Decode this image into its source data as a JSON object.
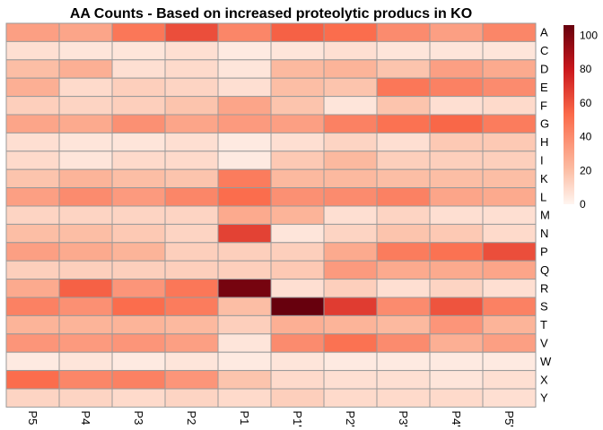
{
  "chart_data": {
    "type": "heatmap",
    "title": "AA Counts - Based on increased proteolytic producs in KO",
    "columns": [
      "P5",
      "P4",
      "P3",
      "P2",
      "P1",
      "P1'",
      "P2'",
      "P3'",
      "P4'",
      "P5'"
    ],
    "rows": [
      "A",
      "C",
      "D",
      "E",
      "F",
      "G",
      "H",
      "I",
      "K",
      "L",
      "M",
      "N",
      "P",
      "Q",
      "R",
      "S",
      "T",
      "V",
      "W",
      "X",
      "Y"
    ],
    "values": [
      [
        32,
        30,
        48,
        62,
        42,
        56,
        52,
        40,
        32,
        42
      ],
      [
        8,
        6,
        6,
        8,
        4,
        6,
        8,
        6,
        6,
        6
      ],
      [
        20,
        26,
        8,
        10,
        6,
        22,
        24,
        18,
        32,
        28
      ],
      [
        26,
        10,
        14,
        12,
        8,
        20,
        18,
        48,
        44,
        40
      ],
      [
        14,
        12,
        14,
        18,
        30,
        18,
        6,
        18,
        8,
        10
      ],
      [
        30,
        28,
        38,
        30,
        34,
        32,
        44,
        50,
        54,
        46
      ],
      [
        8,
        6,
        6,
        8,
        4,
        8,
        12,
        8,
        16,
        16
      ],
      [
        10,
        6,
        10,
        10,
        4,
        16,
        22,
        14,
        14,
        14
      ],
      [
        18,
        24,
        20,
        18,
        46,
        22,
        22,
        20,
        20,
        20
      ],
      [
        32,
        40,
        34,
        42,
        52,
        38,
        40,
        44,
        30,
        28
      ],
      [
        12,
        12,
        12,
        12,
        28,
        24,
        8,
        12,
        8,
        8
      ],
      [
        20,
        20,
        16,
        12,
        66,
        6,
        12,
        18,
        16,
        10
      ],
      [
        32,
        28,
        24,
        14,
        14,
        14,
        28,
        46,
        50,
        62
      ],
      [
        14,
        14,
        14,
        14,
        14,
        16,
        34,
        28,
        28,
        30
      ],
      [
        28,
        56,
        36,
        48,
        102,
        8,
        14,
        8,
        12,
        8
      ],
      [
        44,
        38,
        52,
        46,
        20,
        110,
        68,
        40,
        60,
        44
      ],
      [
        24,
        24,
        24,
        22,
        14,
        26,
        24,
        22,
        36,
        24
      ],
      [
        36,
        34,
        36,
        32,
        6,
        40,
        50,
        40,
        26,
        32
      ],
      [
        4,
        6,
        4,
        6,
        4,
        6,
        4,
        4,
        4,
        4
      ],
      [
        52,
        42,
        44,
        36,
        18,
        10,
        8,
        8,
        6,
        8
      ],
      [
        12,
        12,
        10,
        12,
        10,
        14,
        10,
        10,
        10,
        8
      ]
    ],
    "colorbar": {
      "min": 0,
      "max": 106,
      "ticks": [
        0,
        20,
        40,
        60,
        80,
        100
      ]
    },
    "colors": {
      "low": "#fff5f0",
      "mid1": "#fcbba1",
      "mid2": "#fb6a4a",
      "mid3": "#cb181d",
      "high": "#67000d",
      "cell_border": "#9a9a9a"
    },
    "legend_position": "right",
    "xlabel": "",
    "ylabel": ""
  }
}
